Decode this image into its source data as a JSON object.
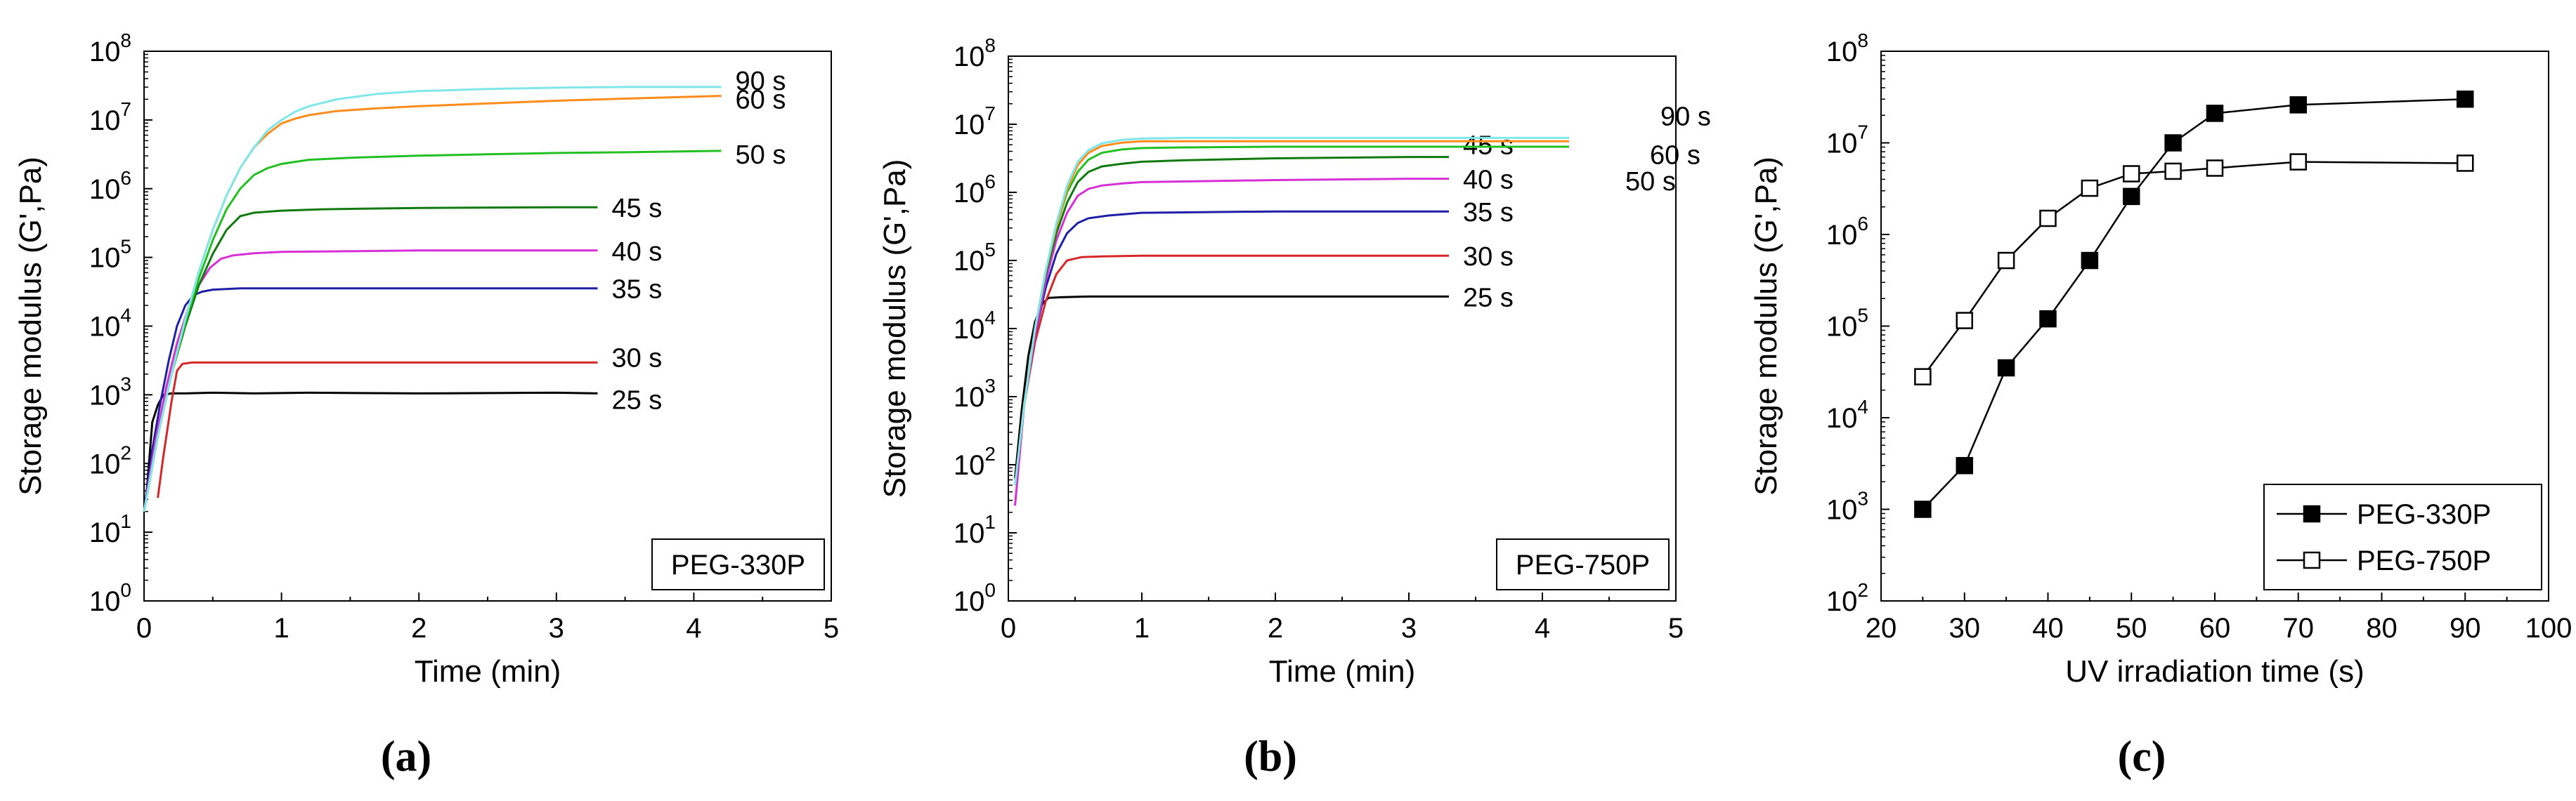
{
  "chart_data": [
    {
      "type": "line",
      "panel_caption": "(a)",
      "xlabel": "Time (min)",
      "ylabel": "Storage modulus (G',Pa)",
      "xlim": [
        0,
        5
      ],
      "ylim_log10": [
        0,
        8
      ],
      "xticks": [
        "0",
        "1",
        "2",
        "3",
        "4",
        "5"
      ],
      "yticks": [
        {
          "base": "10",
          "exp": "0"
        },
        {
          "base": "10",
          "exp": "1"
        },
        {
          "base": "10",
          "exp": "2"
        },
        {
          "base": "10",
          "exp": "3"
        },
        {
          "base": "10",
          "exp": "4"
        },
        {
          "base": "10",
          "exp": "5"
        },
        {
          "base": "10",
          "exp": "6"
        },
        {
          "base": "10",
          "exp": "7"
        },
        {
          "base": "10",
          "exp": "8"
        }
      ],
      "legend": "PEG-330P",
      "legend_position": "bottom-right",
      "series": [
        {
          "name": "25 s",
          "color": "#000000",
          "x": [
            0.02,
            0.06,
            0.1,
            0.14,
            0.2,
            0.3,
            0.5,
            0.8,
            1.2,
            2,
            3,
            3.3
          ],
          "log10_y": [
            1.6,
            2.6,
            2.85,
            3.0,
            3.02,
            3.02,
            3.03,
            3.02,
            3.03,
            3.02,
            3.03,
            3.02
          ]
        },
        {
          "name": "30 s",
          "color": "#d62728",
          "x": [
            0.1,
            0.14,
            0.2,
            0.24,
            0.28,
            0.35,
            0.45,
            0.6,
            1,
            2,
            3,
            3.3
          ],
          "log10_y": [
            1.5,
            2.1,
            2.9,
            3.35,
            3.45,
            3.47,
            3.47,
            3.47,
            3.47,
            3.47,
            3.47,
            3.47
          ]
        },
        {
          "name": "35 s",
          "color": "#1f1fa8",
          "x": [
            0,
            0.06,
            0.12,
            0.18,
            0.24,
            0.3,
            0.36,
            0.42,
            0.5,
            0.7,
            1,
            2,
            3,
            3.3
          ],
          "log10_y": [
            1.3,
            2.2,
            2.9,
            3.5,
            4.0,
            4.3,
            4.45,
            4.5,
            4.53,
            4.55,
            4.55,
            4.55,
            4.55,
            4.55
          ]
        },
        {
          "name": "40 s",
          "color": "#d62fd6",
          "x": [
            0,
            0.08,
            0.16,
            0.24,
            0.32,
            0.4,
            0.48,
            0.56,
            0.65,
            0.8,
            1,
            2,
            3,
            3.3
          ],
          "log10_y": [
            1.3,
            2.3,
            3.1,
            3.75,
            4.25,
            4.6,
            4.85,
            4.98,
            5.03,
            5.06,
            5.08,
            5.1,
            5.1,
            5.1
          ]
        },
        {
          "name": "45 s",
          "color": "#107a10",
          "x": [
            0,
            0.1,
            0.2,
            0.3,
            0.4,
            0.5,
            0.6,
            0.7,
            0.8,
            1,
            1.3,
            2,
            3,
            3.3
          ],
          "log10_y": [
            1.3,
            2.4,
            3.3,
            4.0,
            4.6,
            5.05,
            5.4,
            5.6,
            5.65,
            5.68,
            5.7,
            5.72,
            5.73,
            5.73
          ]
        },
        {
          "name": "50 s",
          "color": "#22c022",
          "x": [
            0,
            0.1,
            0.2,
            0.3,
            0.4,
            0.5,
            0.6,
            0.7,
            0.8,
            0.9,
            1,
            1.2,
            1.5,
            2,
            2.5,
            3,
            3.5,
            4.2
          ],
          "log10_y": [
            1.3,
            2.4,
            3.3,
            4.05,
            4.7,
            5.25,
            5.7,
            6.0,
            6.2,
            6.3,
            6.36,
            6.42,
            6.45,
            6.48,
            6.5,
            6.52,
            6.53,
            6.55
          ]
        },
        {
          "name": "60 s",
          "color": "#ff8c1a",
          "x": [
            0,
            0.1,
            0.2,
            0.3,
            0.4,
            0.5,
            0.6,
            0.7,
            0.8,
            0.9,
            1,
            1.1,
            1.2,
            1.4,
            1.7,
            2,
            2.5,
            3,
            3.5,
            4.2
          ],
          "log10_y": [
            1.3,
            2.4,
            3.3,
            4.1,
            4.8,
            5.4,
            5.9,
            6.3,
            6.6,
            6.8,
            6.95,
            7.02,
            7.07,
            7.13,
            7.17,
            7.2,
            7.24,
            7.28,
            7.31,
            7.35
          ]
        },
        {
          "name": "90 s",
          "color": "#7fe7ea",
          "x": [
            0,
            0.1,
            0.2,
            0.3,
            0.4,
            0.5,
            0.6,
            0.7,
            0.8,
            0.9,
            1,
            1.1,
            1.2,
            1.4,
            1.7,
            2,
            2.5,
            3,
            3.5,
            4.2
          ],
          "log10_y": [
            1.3,
            2.4,
            3.3,
            4.1,
            4.8,
            5.4,
            5.9,
            6.3,
            6.6,
            6.85,
            7.0,
            7.12,
            7.2,
            7.3,
            7.38,
            7.42,
            7.45,
            7.47,
            7.48,
            7.48
          ]
        }
      ]
    },
    {
      "type": "line",
      "panel_caption": "(b)",
      "xlabel": "Time (min)",
      "ylabel": "Storage modulus (G',Pa)",
      "xlim": [
        0,
        5
      ],
      "ylim_log10": [
        0,
        8
      ],
      "xticks": [
        "0",
        "1",
        "2",
        "3",
        "4",
        "5"
      ],
      "yticks": [
        {
          "base": "10",
          "exp": "0"
        },
        {
          "base": "10",
          "exp": "1"
        },
        {
          "base": "10",
          "exp": "2"
        },
        {
          "base": "10",
          "exp": "3"
        },
        {
          "base": "10",
          "exp": "4"
        },
        {
          "base": "10",
          "exp": "5"
        },
        {
          "base": "10",
          "exp": "6"
        },
        {
          "base": "10",
          "exp": "7"
        },
        {
          "base": "10",
          "exp": "8"
        }
      ],
      "legend": "PEG-750P",
      "legend_position": "bottom-right",
      "series": [
        {
          "name": "25 s",
          "color": "#000000",
          "x": [
            0.05,
            0.1,
            0.15,
            0.2,
            0.25,
            0.3,
            0.4,
            0.6,
            1,
            2,
            3,
            3.3
          ],
          "log10_y": [
            1.8,
            2.8,
            3.6,
            4.1,
            4.35,
            4.45,
            4.46,
            4.47,
            4.47,
            4.47,
            4.47,
            4.47
          ]
        },
        {
          "name": "30 s",
          "color": "#d62728",
          "x": [
            0.05,
            0.12,
            0.2,
            0.28,
            0.36,
            0.44,
            0.55,
            0.7,
            1,
            2,
            3,
            3.3
          ],
          "log10_y": [
            1.7,
            2.9,
            3.8,
            4.4,
            4.8,
            5.0,
            5.05,
            5.06,
            5.07,
            5.07,
            5.07,
            5.07
          ]
        },
        {
          "name": "35 s",
          "color": "#1f1fa8",
          "x": [
            0.05,
            0.12,
            0.2,
            0.28,
            0.36,
            0.44,
            0.52,
            0.6,
            0.75,
            1,
            2,
            3,
            3.3
          ],
          "log10_y": [
            1.7,
            2.9,
            3.9,
            4.6,
            5.1,
            5.4,
            5.55,
            5.62,
            5.66,
            5.7,
            5.72,
            5.72,
            5.72
          ]
        },
        {
          "name": "40 s",
          "color": "#d62fd6",
          "x": [
            0.05,
            0.12,
            0.2,
            0.28,
            0.36,
            0.44,
            0.52,
            0.6,
            0.7,
            0.85,
            1,
            2,
            3,
            3.3
          ],
          "log10_y": [
            1.4,
            2.9,
            3.9,
            4.7,
            5.3,
            5.7,
            5.95,
            6.05,
            6.1,
            6.13,
            6.15,
            6.18,
            6.2,
            6.2
          ]
        },
        {
          "name": "45 s",
          "color": "#107a10",
          "x": [
            0.05,
            0.12,
            0.2,
            0.28,
            0.36,
            0.44,
            0.52,
            0.6,
            0.7,
            0.85,
            1,
            1.3,
            2,
            3,
            3.3
          ],
          "log10_y": [
            1.7,
            2.9,
            4.0,
            4.8,
            5.4,
            5.85,
            6.15,
            6.3,
            6.38,
            6.42,
            6.45,
            6.47,
            6.5,
            6.52,
            6.52
          ]
        },
        {
          "name": "50 s",
          "color": "#22c022",
          "x": [
            0.05,
            0.12,
            0.2,
            0.28,
            0.36,
            0.44,
            0.52,
            0.6,
            0.7,
            0.85,
            1,
            1.3,
            2,
            3,
            4.2
          ],
          "log10_y": [
            1.7,
            2.9,
            4.0,
            4.85,
            5.5,
            6.0,
            6.3,
            6.48,
            6.58,
            6.63,
            6.65,
            6.66,
            6.67,
            6.67,
            6.67
          ]
        },
        {
          "name": "60 s",
          "color": "#ff8c1a",
          "x": [
            0.05,
            0.12,
            0.2,
            0.28,
            0.36,
            0.44,
            0.52,
            0.6,
            0.7,
            0.85,
            1,
            1.3,
            2,
            3,
            4.2
          ],
          "log10_y": [
            1.7,
            2.9,
            4.0,
            4.85,
            5.5,
            6.05,
            6.4,
            6.58,
            6.68,
            6.73,
            6.75,
            6.75,
            6.75,
            6.75,
            6.75
          ]
        },
        {
          "name": "90 s",
          "color": "#7fe7ea",
          "x": [
            0.05,
            0.12,
            0.2,
            0.28,
            0.36,
            0.44,
            0.52,
            0.6,
            0.7,
            0.85,
            1,
            1.3,
            2,
            3,
            4.2
          ],
          "log10_y": [
            1.7,
            2.9,
            4.0,
            4.85,
            5.55,
            6.1,
            6.45,
            6.62,
            6.72,
            6.77,
            6.79,
            6.8,
            6.8,
            6.8,
            6.8
          ]
        }
      ]
    },
    {
      "type": "line",
      "panel_caption": "(c)",
      "xlabel": "UV irradiation time (s)",
      "ylabel": "Storage modulus (G',Pa)",
      "xlim": [
        20,
        100
      ],
      "ylim_log10": [
        2,
        8
      ],
      "xticks": [
        "20",
        "30",
        "40",
        "50",
        "60",
        "70",
        "80",
        "90",
        "100"
      ],
      "yticks": [
        {
          "base": "10",
          "exp": "2"
        },
        {
          "base": "10",
          "exp": "3"
        },
        {
          "base": "10",
          "exp": "4"
        },
        {
          "base": "10",
          "exp": "5"
        },
        {
          "base": "10",
          "exp": "6"
        },
        {
          "base": "10",
          "exp": "7"
        },
        {
          "base": "10",
          "exp": "8"
        }
      ],
      "legend_position": "bottom-right",
      "series": [
        {
          "name": "PEG-330P",
          "marker": "filled-square",
          "x": [
            25,
            30,
            35,
            40,
            45,
            50,
            55,
            60,
            70,
            90
          ],
          "y": [
            1000,
            3000,
            35000,
            120000,
            520000,
            2600000,
            10000000,
            21000000,
            26000000,
            30000000
          ]
        },
        {
          "name": "PEG-750P",
          "marker": "open-square",
          "x": [
            25,
            30,
            35,
            40,
            45,
            50,
            55,
            60,
            70,
            90
          ],
          "y": [
            28000,
            115000,
            520000,
            1500000,
            3200000,
            4600000,
            4900000,
            5300000,
            6200000,
            6000000
          ]
        }
      ]
    }
  ]
}
